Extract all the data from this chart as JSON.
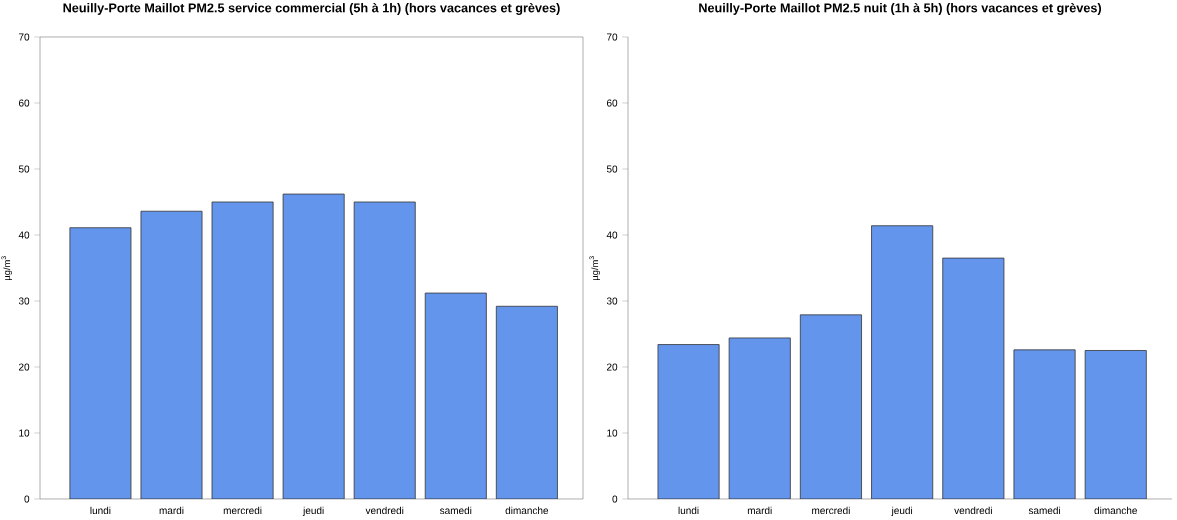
{
  "chart_data": [
    {
      "type": "bar",
      "title": "Neuilly-Porte Maillot PM2.5 service commercial (5h à 1h) (hors vacances et grèves)",
      "ylabel": "µg/m$^{3}$",
      "categories": [
        "lundi",
        "mardi",
        "mercredi",
        "jeudi",
        "vendredi",
        "samedi",
        "dimanche"
      ],
      "values": [
        41.1,
        43.6,
        45.0,
        46.2,
        45.0,
        31.2,
        29.2
      ],
      "color": "#6495ed",
      "ylim": [
        0,
        70
      ],
      "yticks": [
        0,
        10,
        20,
        30,
        40,
        50,
        60,
        70
      ]
    },
    {
      "type": "bar",
      "title": "Neuilly-Porte Maillot PM2.5 nuit (1h à 5h) (hors vacances et grèves)",
      "ylabel": "µg/m$^{3}$",
      "categories": [
        "lundi",
        "mardi",
        "mercredi",
        "jeudi",
        "vendredi",
        "samedi",
        "dimanche"
      ],
      "values": [
        23.4,
        24.4,
        27.9,
        41.4,
        36.5,
        22.6,
        22.5
      ],
      "color": "#6495ed",
      "ylim": [
        0,
        70
      ],
      "yticks": [
        0,
        10,
        20,
        30,
        40,
        50,
        60,
        70
      ]
    }
  ]
}
